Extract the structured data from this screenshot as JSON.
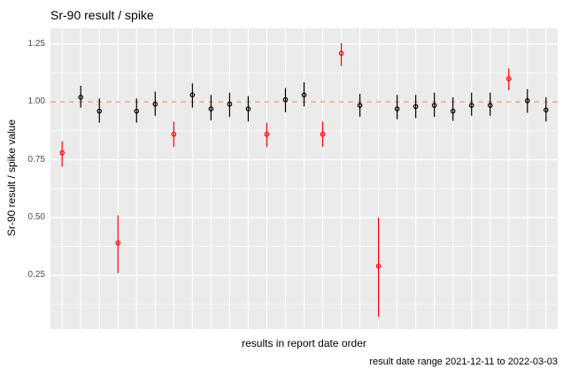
{
  "chart_data": {
    "type": "scatter",
    "subtype": "points-with-error-bars",
    "title": "Sr-90 result / spike",
    "xlabel": "results in report date order",
    "ylabel": "Sr-90 result / spike value",
    "caption": "result date range 2021-12-11 to 2022-03-03",
    "legend": "none",
    "x_axis": {
      "kind": "categorical-index",
      "n_points": 27,
      "tick_labels_shown": false
    },
    "y_axis": {
      "ticks": [
        0.25,
        0.5,
        0.75,
        1.0,
        1.25
      ],
      "tick_labels": [
        "0.25",
        "0.50",
        "0.75",
        "1.00",
        "1.25"
      ],
      "minor_ticks": [
        0.125,
        0.375,
        0.625,
        0.875,
        1.125
      ],
      "range": [
        0.018,
        1.318
      ]
    },
    "grid": {
      "panel_background": "#EBEBEB",
      "major_color": "#FFFFFF",
      "minor_color": "#FFFFFF"
    },
    "refline": {
      "y": 1.0,
      "style": "dashed",
      "color": "#F0A07E"
    },
    "series": [
      {
        "name": "normal",
        "color": "#000000",
        "marker": "open-circle"
      },
      {
        "name": "flagged",
        "color": "#FF0000",
        "marker": "open-circle"
      }
    ],
    "points": [
      {
        "i": 1,
        "y": 0.78,
        "ylo": 0.72,
        "yhi": 0.83,
        "series": "flagged"
      },
      {
        "i": 2,
        "y": 1.02,
        "ylo": 0.975,
        "yhi": 1.07,
        "series": "normal"
      },
      {
        "i": 3,
        "y": 0.96,
        "ylo": 0.91,
        "yhi": 1.015,
        "series": "normal"
      },
      {
        "i": 4,
        "y": 0.39,
        "ylo": 0.26,
        "yhi": 0.51,
        "series": "flagged"
      },
      {
        "i": 5,
        "y": 0.96,
        "ylo": 0.91,
        "yhi": 1.015,
        "series": "normal"
      },
      {
        "i": 6,
        "y": 0.99,
        "ylo": 0.94,
        "yhi": 1.045,
        "series": "normal"
      },
      {
        "i": 7,
        "y": 0.86,
        "ylo": 0.805,
        "yhi": 0.915,
        "series": "flagged"
      },
      {
        "i": 8,
        "y": 1.03,
        "ylo": 0.975,
        "yhi": 1.08,
        "series": "normal"
      },
      {
        "i": 9,
        "y": 0.97,
        "ylo": 0.92,
        "yhi": 1.03,
        "series": "normal"
      },
      {
        "i": 10,
        "y": 0.99,
        "ylo": 0.935,
        "yhi": 1.04,
        "series": "normal"
      },
      {
        "i": 11,
        "y": 0.97,
        "ylo": 0.915,
        "yhi": 1.025,
        "series": "normal"
      },
      {
        "i": 12,
        "y": 0.86,
        "ylo": 0.805,
        "yhi": 0.91,
        "series": "flagged"
      },
      {
        "i": 13,
        "y": 1.01,
        "ylo": 0.955,
        "yhi": 1.06,
        "series": "normal"
      },
      {
        "i": 14,
        "y": 1.03,
        "ylo": 0.98,
        "yhi": 1.085,
        "series": "normal"
      },
      {
        "i": 15,
        "y": 0.86,
        "ylo": 0.805,
        "yhi": 0.915,
        "series": "flagged"
      },
      {
        "i": 16,
        "y": 1.21,
        "ylo": 1.155,
        "yhi": 1.255,
        "series": "flagged"
      },
      {
        "i": 17,
        "y": 0.985,
        "ylo": 0.935,
        "yhi": 1.035,
        "series": "normal"
      },
      {
        "i": 18,
        "y": 0.29,
        "ylo": 0.07,
        "yhi": 0.5,
        "series": "flagged"
      },
      {
        "i": 19,
        "y": 0.97,
        "ylo": 0.925,
        "yhi": 1.03,
        "series": "normal"
      },
      {
        "i": 20,
        "y": 0.98,
        "ylo": 0.93,
        "yhi": 1.03,
        "series": "normal"
      },
      {
        "i": 21,
        "y": 0.985,
        "ylo": 0.935,
        "yhi": 1.04,
        "series": "normal"
      },
      {
        "i": 22,
        "y": 0.96,
        "ylo": 0.918,
        "yhi": 1.02,
        "series": "normal"
      },
      {
        "i": 23,
        "y": 0.985,
        "ylo": 0.94,
        "yhi": 1.04,
        "series": "normal"
      },
      {
        "i": 24,
        "y": 0.985,
        "ylo": 0.94,
        "yhi": 1.04,
        "series": "normal"
      },
      {
        "i": 25,
        "y": 1.1,
        "ylo": 1.05,
        "yhi": 1.145,
        "series": "flagged"
      },
      {
        "i": 26,
        "y": 1.005,
        "ylo": 0.953,
        "yhi": 1.055,
        "series": "normal"
      },
      {
        "i": 27,
        "y": 0.965,
        "ylo": 0.915,
        "yhi": 1.02,
        "series": "normal"
      }
    ]
  },
  "colors": {
    "background": "#FFFFFF",
    "text": "#000000",
    "tick_label": "#4D4D4D"
  }
}
